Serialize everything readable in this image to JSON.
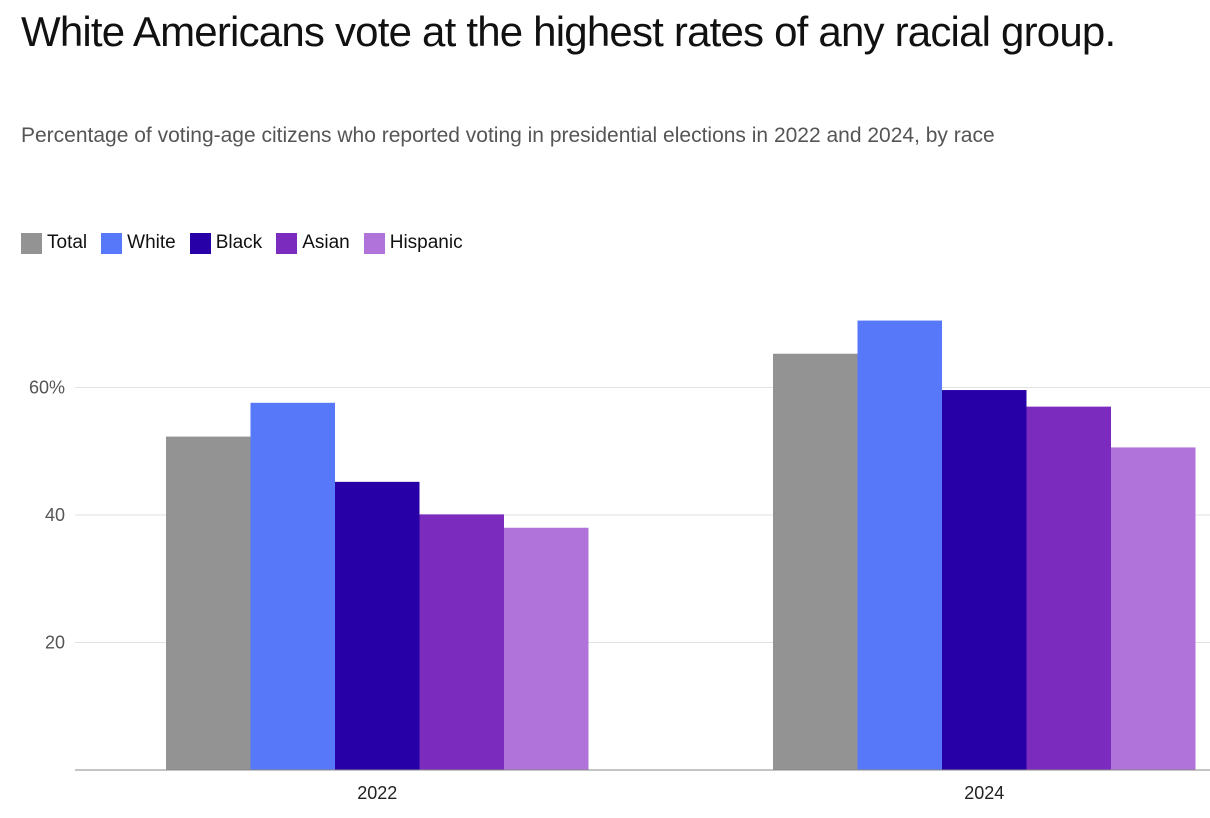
{
  "header": {
    "title": "White Americans vote at the highest rates of any racial group.",
    "subtitle": "Percentage of voting-age citizens who reported voting in presidential elections in 2022 and 2024, by race"
  },
  "chart_data": {
    "type": "bar",
    "title": "White Americans vote at the highest rates of any racial group.",
    "subtitle": "Percentage of voting-age citizens who reported voting in presidential elections in 2022 and 2024, by race",
    "xlabel": "",
    "ylabel": "",
    "categories": [
      "2022",
      "2024"
    ],
    "series": [
      {
        "name": "Total",
        "color": "#939393",
        "values": [
          52.3,
          65.3
        ]
      },
      {
        "name": "White",
        "color": "#5778f8",
        "values": [
          57.6,
          70.5
        ]
      },
      {
        "name": "Black",
        "color": "#2700a8",
        "values": [
          45.2,
          59.6
        ]
      },
      {
        "name": "Asian",
        "color": "#7b2bbd",
        "values": [
          40.1,
          57.0
        ]
      },
      {
        "name": "Hispanic",
        "color": "#b073d9",
        "values": [
          38.0,
          50.6
        ]
      }
    ],
    "ylim": [
      0,
      75
    ],
    "yticks": [
      {
        "value": 20,
        "label": "20"
      },
      {
        "value": 40,
        "label": "40"
      },
      {
        "value": 60,
        "label": "60%"
      }
    ],
    "grid": true,
    "legend": "top-left"
  }
}
